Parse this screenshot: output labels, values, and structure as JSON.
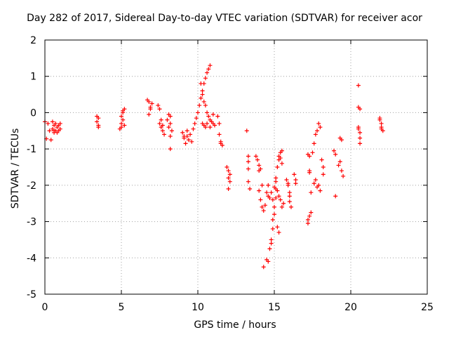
{
  "chart_data": {
    "type": "scatter",
    "title": "Day 282 of 2017, Sidereal Day-to-day VTEC variation (SDTVAR) for receiver acor",
    "xlabel": "GPS time / hours",
    "ylabel": "SDTVAR / TECUs",
    "xlim": [
      0,
      25
    ],
    "ylim": [
      -5,
      2
    ],
    "xticks": [
      "0",
      "5",
      "10",
      "15",
      "20",
      "25"
    ],
    "yticks": [
      "2",
      "1",
      "0",
      "-1",
      "-2",
      "-3",
      "-4",
      "-5"
    ],
    "grid": true,
    "marker": "+",
    "color": "#ff0000",
    "series": [
      {
        "name": "SDTVAR",
        "x": [
          0.0,
          0.1,
          0.2,
          0.3,
          0.5,
          0.5,
          0.6,
          0.6,
          0.7,
          0.7,
          0.8,
          0.8,
          0.9,
          0.9,
          1.0,
          1.0,
          0.4,
          0.6,
          3.4,
          3.4,
          3.5,
          3.5,
          3.5,
          4.9,
          5.0,
          5.0,
          5.1,
          5.1,
          5.2,
          5.2,
          5.0,
          5.1,
          6.7,
          6.8,
          6.9,
          7.0,
          6.8,
          6.9,
          7.4,
          7.5,
          7.6,
          7.6,
          7.7,
          7.8,
          7.5,
          7.7,
          8.0,
          8.1,
          8.2,
          8.2,
          8.3,
          8.1,
          8.2,
          8.2,
          9.0,
          9.1,
          9.2,
          9.3,
          9.4,
          9.5,
          9.6,
          9.1,
          9.3,
          9.7,
          9.8,
          9.9,
          10.0,
          10.1,
          10.2,
          10.3,
          10.4,
          10.5,
          10.6,
          10.7,
          10.8,
          10.2,
          10.3,
          10.4,
          10.5,
          10.6,
          10.7,
          10.8,
          10.9,
          11.0,
          11.1,
          10.3,
          10.4,
          10.5,
          10.6,
          10.8,
          11.0,
          11.3,
          11.4,
          11.5,
          11.6,
          11.4,
          11.5,
          11.9,
          12.0,
          12.0,
          12.1,
          12.0,
          12.1,
          13.2,
          13.3,
          13.3,
          13.4,
          13.3,
          13.3,
          13.8,
          13.9,
          14.0,
          14.0,
          14.1,
          14.2,
          14.0,
          14.1,
          14.2,
          14.3,
          14.4,
          14.5,
          14.6,
          14.5,
          14.6,
          14.3,
          14.7,
          14.8,
          14.8,
          14.9,
          14.9,
          15.0,
          15.0,
          15.1,
          15.1,
          14.6,
          14.7,
          14.8,
          14.9,
          15.0,
          15.1,
          15.1,
          15.2,
          15.3,
          15.3,
          15.4,
          15.4,
          15.5,
          15.5,
          15.2,
          15.3,
          15.4,
          15.5,
          15.6,
          15.2,
          15.3,
          15.8,
          15.9,
          16.0,
          16.0,
          16.1,
          15.9,
          16.0,
          16.3,
          16.4,
          16.4,
          17.2,
          17.3,
          17.3,
          17.4,
          17.2,
          17.3,
          17.4,
          17.2,
          17.3,
          17.5,
          17.6,
          17.7,
          17.8,
          17.9,
          18.0,
          18.1,
          18.2,
          17.6,
          17.8,
          18.0,
          18.2,
          17.7,
          17.9,
          18.9,
          19.0,
          19.0,
          19.3,
          19.4,
          19.3,
          19.4,
          19.5,
          19.2,
          20.5,
          20.5,
          20.6,
          20.6,
          20.6,
          20.5,
          20.6,
          20.5,
          21.9,
          22.0,
          22.0,
          22.1,
          21.9,
          22.0
        ],
        "y": [
          -0.25,
          -0.72,
          -0.3,
          -0.5,
          -0.25,
          -0.45,
          -0.35,
          -0.55,
          -0.3,
          -0.5,
          -0.4,
          -0.55,
          -0.35,
          -0.5,
          -0.45,
          -0.3,
          -0.75,
          -0.5,
          -0.1,
          -0.25,
          -0.35,
          -0.15,
          -0.4,
          -0.45,
          -0.1,
          -0.3,
          -0.2,
          0.0,
          0.1,
          -0.35,
          -0.4,
          0.05,
          0.35,
          0.3,
          0.1,
          0.25,
          -0.05,
          0.15,
          0.2,
          0.1,
          -0.2,
          -0.4,
          -0.5,
          -0.6,
          -0.3,
          -0.35,
          -0.2,
          -0.4,
          -0.65,
          -1.0,
          -0.5,
          -0.05,
          -0.3,
          -0.1,
          -0.55,
          -0.7,
          -0.85,
          -0.65,
          -0.75,
          -0.6,
          -0.8,
          -0.65,
          -0.5,
          -0.45,
          -0.3,
          -0.15,
          0.0,
          0.2,
          0.4,
          0.6,
          0.8,
          0.95,
          1.1,
          1.2,
          1.3,
          0.8,
          0.5,
          0.3,
          0.2,
          0.0,
          -0.1,
          -0.2,
          -0.25,
          -0.3,
          -0.35,
          -0.3,
          -0.35,
          -0.4,
          -0.3,
          -0.4,
          -0.05,
          -0.1,
          -0.6,
          -0.8,
          -0.9,
          -0.3,
          -0.85,
          -1.5,
          -1.8,
          -2.1,
          -1.9,
          -1.6,
          -1.7,
          -0.5,
          -1.2,
          -1.35,
          -2.1,
          -1.55,
          -1.9,
          -1.2,
          -1.3,
          -1.45,
          -1.6,
          -1.55,
          -2.0,
          -2.15,
          -2.4,
          -2.6,
          -2.7,
          -2.55,
          -2.2,
          -2.3,
          -4.05,
          -4.1,
          -4.25,
          -3.75,
          -3.6,
          -3.5,
          -3.2,
          -2.95,
          -2.8,
          -2.6,
          -2.35,
          -2.1,
          -2.0,
          -2.35,
          -2.2,
          -2.4,
          -2.05,
          -1.9,
          -1.8,
          -1.5,
          -1.3,
          -1.2,
          -1.1,
          -1.25,
          -1.4,
          -1.05,
          -3.15,
          -3.3,
          -2.4,
          -2.6,
          -2.5,
          -2.15,
          -2.3,
          -1.85,
          -2.0,
          -2.2,
          -2.45,
          -2.6,
          -1.95,
          -2.3,
          -1.7,
          -1.85,
          -1.95,
          -1.15,
          -1.2,
          -1.65,
          -2.2,
          -2.95,
          -2.85,
          -2.75,
          -3.05,
          -1.6,
          -1.1,
          -0.85,
          -0.6,
          -0.5,
          -0.3,
          -0.4,
          -1.3,
          -1.7,
          -1.95,
          -2.05,
          -2.15,
          -1.5,
          -1.85,
          -2.0,
          -1.05,
          -1.15,
          -2.3,
          -0.7,
          -0.75,
          -1.35,
          -1.6,
          -1.75,
          -1.45,
          0.75,
          -0.4,
          -0.55,
          -0.7,
          -0.85,
          0.15,
          0.1,
          -0.45,
          -0.2,
          -0.3,
          -0.45,
          -0.5,
          -0.15,
          -0.4
        ]
      }
    ]
  }
}
